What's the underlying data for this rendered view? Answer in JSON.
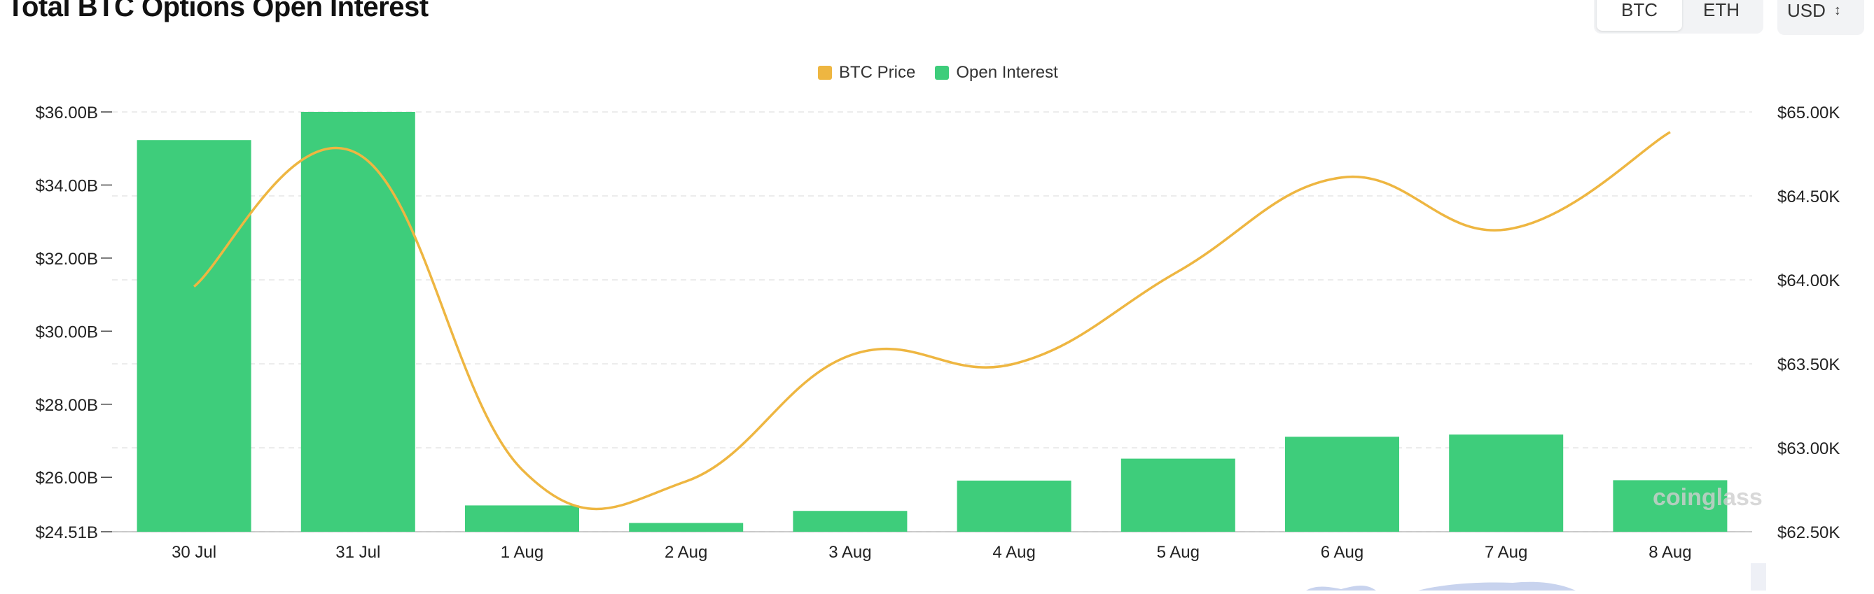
{
  "header": {
    "title": "Total BTC Options Open Interest",
    "asset_tabs": [
      "BTC",
      "ETH"
    ],
    "selected_tab": "BTC",
    "currency_select": "USD"
  },
  "colors": {
    "price_line": "#eeb641",
    "open_interest_bar": "#3ecd7b",
    "grid": "#e6e6e6"
  },
  "chart_data": {
    "type": "bar",
    "categories": [
      "30 Jul",
      "31 Jul",
      "1 Aug",
      "2 Aug",
      "3 Aug",
      "4 Aug",
      "5 Aug",
      "6 Aug",
      "7 Aug",
      "8 Aug"
    ],
    "series": [
      {
        "name": "Open Interest",
        "type": "bar",
        "axis": "left",
        "values": [
          35.23,
          36.0,
          25.23,
          24.75,
          25.08,
          25.91,
          26.51,
          27.11,
          27.17,
          25.92
        ]
      },
      {
        "name": "BTC Price",
        "type": "line",
        "axis": "right",
        "values": [
          63960,
          64750,
          62870,
          62800,
          63550,
          63500,
          64050,
          64610,
          64300,
          64880
        ]
      }
    ],
    "left_axis": {
      "ticks": [
        24.51,
        26.0,
        28.0,
        30.0,
        32.0,
        34.0,
        36.0
      ],
      "tick_labels": [
        "$24.51B",
        "$26.00B",
        "$28.00B",
        "$30.00B",
        "$32.00B",
        "$34.00B",
        "$36.00B"
      ],
      "range": [
        24.51,
        36.0
      ]
    },
    "right_axis": {
      "ticks": [
        62500,
        63000,
        63500,
        64000,
        64500,
        65000
      ],
      "tick_labels": [
        "$62.50K",
        "$63.00K",
        "$63.50K",
        "$64.00K",
        "$64.50K",
        "$65.00K"
      ],
      "range": [
        62500,
        65000
      ]
    },
    "legend": {
      "position": "top-center",
      "entries": [
        "BTC Price",
        "Open Interest"
      ]
    },
    "grid": true,
    "watermark": "coinglass"
  }
}
